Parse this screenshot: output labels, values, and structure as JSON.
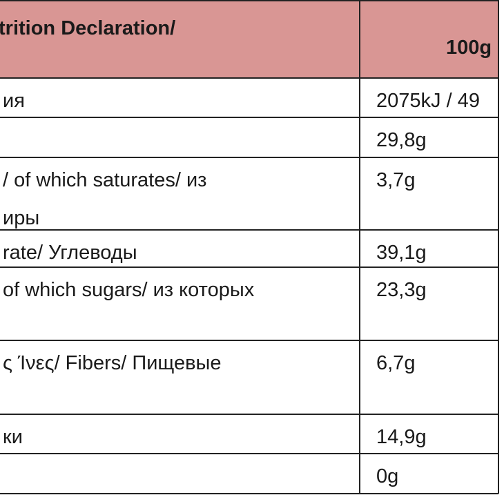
{
  "header": {
    "left": "trition Declaration/",
    "right": "100g"
  },
  "rows": [
    {
      "label": [
        "ия"
      ],
      "value": "2075kJ / 49"
    },
    {
      "value": "29,8g"
    },
    {
      "label": [
        "/ of which saturates/ из",
        "иры"
      ],
      "value": "3,7g"
    },
    {
      "label": [
        "rate/ Углеводы"
      ],
      "value": "39,1g"
    },
    {
      "label": [
        "of which sugars/ из которых"
      ],
      "value": "23,3g"
    },
    {
      "label": [
        "ς Ίνες/ Fibers/ Пищевые"
      ],
      "value": "6,7g"
    },
    {
      "label": [
        "ки"
      ],
      "value": "14,9g"
    },
    {
      "value": "0g"
    }
  ]
}
